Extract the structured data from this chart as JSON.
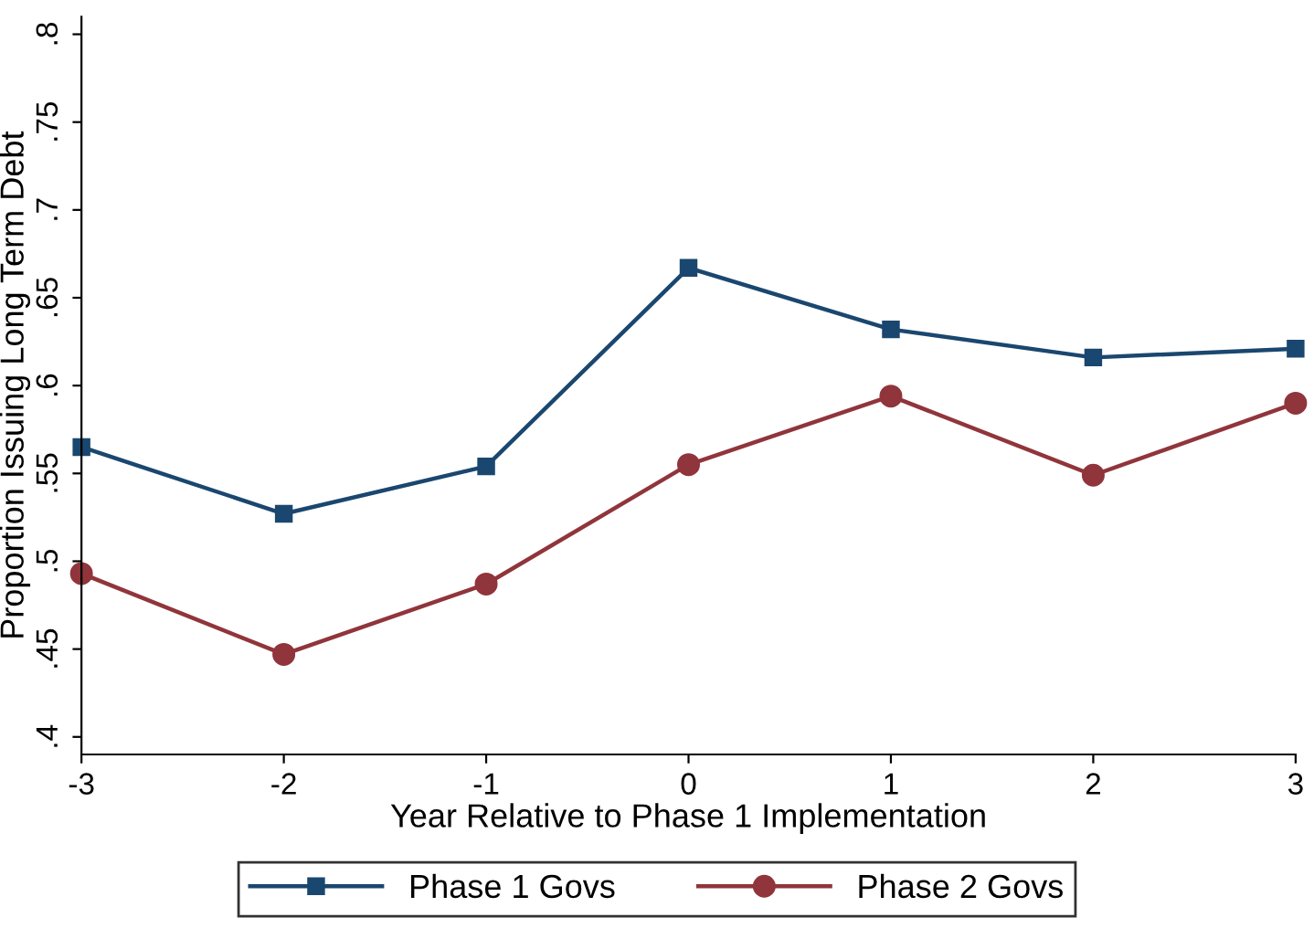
{
  "chart_data": {
    "type": "line",
    "xlabel": "Year Relative to Phase 1 Implementation",
    "ylabel": "Proportion Issuing Long Term Debt",
    "x": [
      -3,
      -2,
      -1,
      0,
      1,
      2,
      3
    ],
    "series": [
      {
        "name": "Phase 1 Govs",
        "color": "#1a476f",
        "marker": "square",
        "values": [
          0.565,
          0.527,
          0.554,
          0.667,
          0.632,
          0.616,
          0.621
        ]
      },
      {
        "name": "Phase 2 Govs",
        "color": "#90353b",
        "marker": "circle",
        "values": [
          0.493,
          0.447,
          0.487,
          0.555,
          0.594,
          0.549,
          0.59
        ]
      }
    ],
    "xlim": [
      -3,
      3
    ],
    "ylim": [
      0.39,
      0.81
    ],
    "xticks": [
      -3,
      -2,
      -1,
      0,
      1,
      2,
      3
    ],
    "yticks": [
      {
        "value": 0.4,
        "label": ".4"
      },
      {
        "value": 0.45,
        "label": ".45"
      },
      {
        "value": 0.5,
        "label": ".5"
      },
      {
        "value": 0.55,
        "label": ".55"
      },
      {
        "value": 0.6,
        "label": ".6"
      },
      {
        "value": 0.65,
        "label": ".65"
      },
      {
        "value": 0.7,
        "label": ".7"
      },
      {
        "value": 0.75,
        "label": ".75"
      },
      {
        "value": 0.8,
        "label": ".8"
      }
    ],
    "grid": false,
    "legend": "bottom",
    "line_style": "solid"
  }
}
